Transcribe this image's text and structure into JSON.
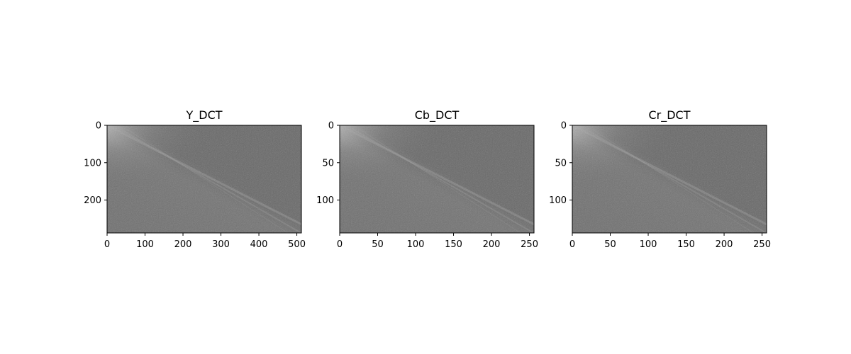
{
  "chart_data": [
    {
      "type": "heatmap",
      "title": "Y_DCT",
      "colormap": "gray",
      "xlim": [
        0,
        512
      ],
      "ylim": [
        288,
        0
      ],
      "xticks": [
        0,
        100,
        200,
        300,
        400,
        500
      ],
      "yticks": [
        0,
        100,
        200
      ],
      "xlabel": "",
      "ylabel": "",
      "grid": false
    },
    {
      "type": "heatmap",
      "title": "Cb_DCT",
      "colormap": "gray",
      "xlim": [
        0,
        256
      ],
      "ylim": [
        144,
        0
      ],
      "xticks": [
        0,
        50,
        100,
        150,
        200,
        250
      ],
      "yticks": [
        0,
        50,
        100
      ],
      "xlabel": "",
      "ylabel": "",
      "grid": false
    },
    {
      "type": "heatmap",
      "title": "Cr_DCT",
      "colormap": "gray",
      "xlim": [
        0,
        256
      ],
      "ylim": [
        144,
        0
      ],
      "xticks": [
        0,
        50,
        100,
        150,
        200,
        250
      ],
      "yticks": [
        0,
        50,
        100
      ],
      "xlabel": "",
      "ylabel": "",
      "grid": false
    }
  ]
}
